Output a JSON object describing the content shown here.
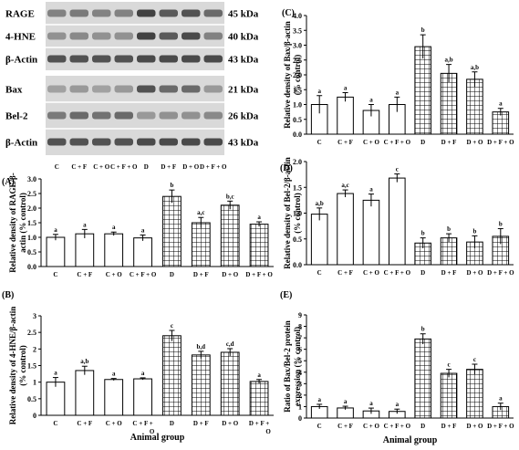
{
  "blot": {
    "top_rows": [
      {
        "label": "RAGE",
        "size": "45 kDa"
      },
      {
        "label": "4-HNE",
        "size": "40 kDa"
      },
      {
        "label": "β-Actin",
        "size": "43 kDa"
      }
    ],
    "bottom_rows": [
      {
        "label": "Bax",
        "size": "21 kDa"
      },
      {
        "label": "Bel-2",
        "size": "26 kDa"
      },
      {
        "label": "β-Actin",
        "size": "43 kDa"
      }
    ],
    "lanes": [
      "C",
      "C + F",
      "C + O",
      "C + F + O",
      "D",
      "D + F",
      "D + O",
      "D + F + O"
    ]
  },
  "colors": {
    "axis": "#000000",
    "bar_fill": "#ffffff",
    "hatch": "#000000",
    "blot_bg": "#d9d9d9",
    "band": "#3a3a3a"
  },
  "chart_data": [
    {
      "id": "A",
      "panel_label": "(A)",
      "type": "bar",
      "categories": [
        "C",
        "C + F",
        "C + O",
        "C + F + O",
        "D",
        "D + F",
        "D + O",
        "D + F + O"
      ],
      "values": [
        1.0,
        1.12,
        1.12,
        0.98,
        2.4,
        1.5,
        2.1,
        1.45
      ],
      "errors": [
        0.1,
        0.15,
        0.06,
        0.1,
        0.22,
        0.18,
        0.14,
        0.08
      ],
      "letters": [
        "a",
        "a",
        "a",
        "a",
        "b",
        "a,c",
        "b,c",
        "a"
      ],
      "ylabel": [
        "Relative density of RAGE/β-",
        "actin (% control)"
      ],
      "xlabel": "",
      "ylim": [
        0,
        3.0
      ],
      "yticks": [
        "0.0",
        "0.5",
        "1.0",
        "1.5",
        "2.0",
        "2.5",
        "3.0"
      ],
      "hatched_from": 4
    },
    {
      "id": "B",
      "panel_label": "(B)",
      "type": "bar",
      "categories": [
        "C",
        "C + F",
        "C + O",
        "C + F +",
        "D",
        "D + F",
        "D + O",
        "D + F +"
      ],
      "categories_line2": [
        "",
        "",
        "",
        "O",
        "",
        "",
        "",
        "O"
      ],
      "values": [
        1.0,
        1.35,
        1.08,
        1.1,
        2.4,
        1.82,
        1.9,
        1.02
      ],
      "errors": [
        0.14,
        0.13,
        0.03,
        0.03,
        0.16,
        0.11,
        0.11,
        0.06
      ],
      "letters": [
        "a",
        "a,b",
        "a",
        "a",
        "c",
        "b,d",
        "c,d",
        "a"
      ],
      "ylabel": [
        "Relative density of 4-HNE/β-actin",
        "(% control)"
      ],
      "xlabel": "Animal group",
      "ylim": [
        0,
        3.0
      ],
      "yticks": [
        "0",
        "0.5",
        "1",
        "1.5",
        "2",
        "2.5",
        "3"
      ],
      "hatched_from": 4
    },
    {
      "id": "C",
      "panel_label": "(C)",
      "type": "bar",
      "categories": [
        "C",
        "C + F",
        "C + O",
        "C + F + O",
        "D",
        "D + F",
        "D + O",
        "D + F + O"
      ],
      "values": [
        1.0,
        1.25,
        0.8,
        1.0,
        2.95,
        2.05,
        1.85,
        0.75
      ],
      "errors": [
        0.3,
        0.15,
        0.2,
        0.25,
        0.4,
        0.3,
        0.25,
        0.12
      ],
      "letters": [
        "a",
        "a",
        "a",
        "a",
        "b",
        "a,b",
        "a,b",
        "a"
      ],
      "ylabel": [
        "Relative density of Bax/β-actin",
        "(% control)"
      ],
      "xlabel": "",
      "ylim": [
        0,
        4.0
      ],
      "yticks": [
        "0.0",
        "0.5",
        "1.0",
        "1.5",
        "2.0",
        "2.5",
        "3.0",
        "3.5",
        "4.0"
      ],
      "hatched_from": 4
    },
    {
      "id": "D",
      "panel_label": "(D)",
      "type": "bar",
      "categories": [
        "C",
        "C + F",
        "C + O",
        "C + F + O",
        "D",
        "D + F",
        "D + O",
        "D + F + O"
      ],
      "values": [
        0.98,
        1.38,
        1.25,
        1.68,
        0.42,
        0.52,
        0.44,
        0.55
      ],
      "errors": [
        0.12,
        0.07,
        0.12,
        0.08,
        0.1,
        0.08,
        0.12,
        0.15
      ],
      "letters": [
        "a,b",
        "a,c",
        "a",
        "c",
        "b",
        "b",
        "b",
        "b"
      ],
      "ylabel": [
        "Relative density of Bel-2/β-actin",
        "(% control)"
      ],
      "xlabel": "",
      "ylim": [
        0,
        2.0
      ],
      "yticks": [
        "0.0",
        "0.5",
        "1.0",
        "1.5",
        "2.0"
      ],
      "hatched_from": 4
    },
    {
      "id": "E",
      "panel_label": "(E)",
      "type": "bar",
      "categories": [
        "C",
        "C + F",
        "C + O",
        "C + F + O",
        "D",
        "D + F",
        "D + O",
        "D + F + O"
      ],
      "values": [
        1.0,
        0.88,
        0.62,
        0.58,
        6.9,
        3.9,
        4.25,
        1.0
      ],
      "errors": [
        0.2,
        0.15,
        0.25,
        0.2,
        0.45,
        0.35,
        0.45,
        0.3
      ],
      "letters": [
        "a",
        "a",
        "a",
        "a",
        "b",
        "c",
        "c",
        "a"
      ],
      "ylabel": [
        "Ratio of Bax/Bel-2 protein",
        "expression (% control)"
      ],
      "xlabel": "Animal group",
      "ylim": [
        0,
        9
      ],
      "yticks": [
        "0",
        "1",
        "2",
        "3",
        "4",
        "5",
        "6",
        "7",
        "8",
        "9"
      ],
      "hatched_from": 4
    }
  ]
}
